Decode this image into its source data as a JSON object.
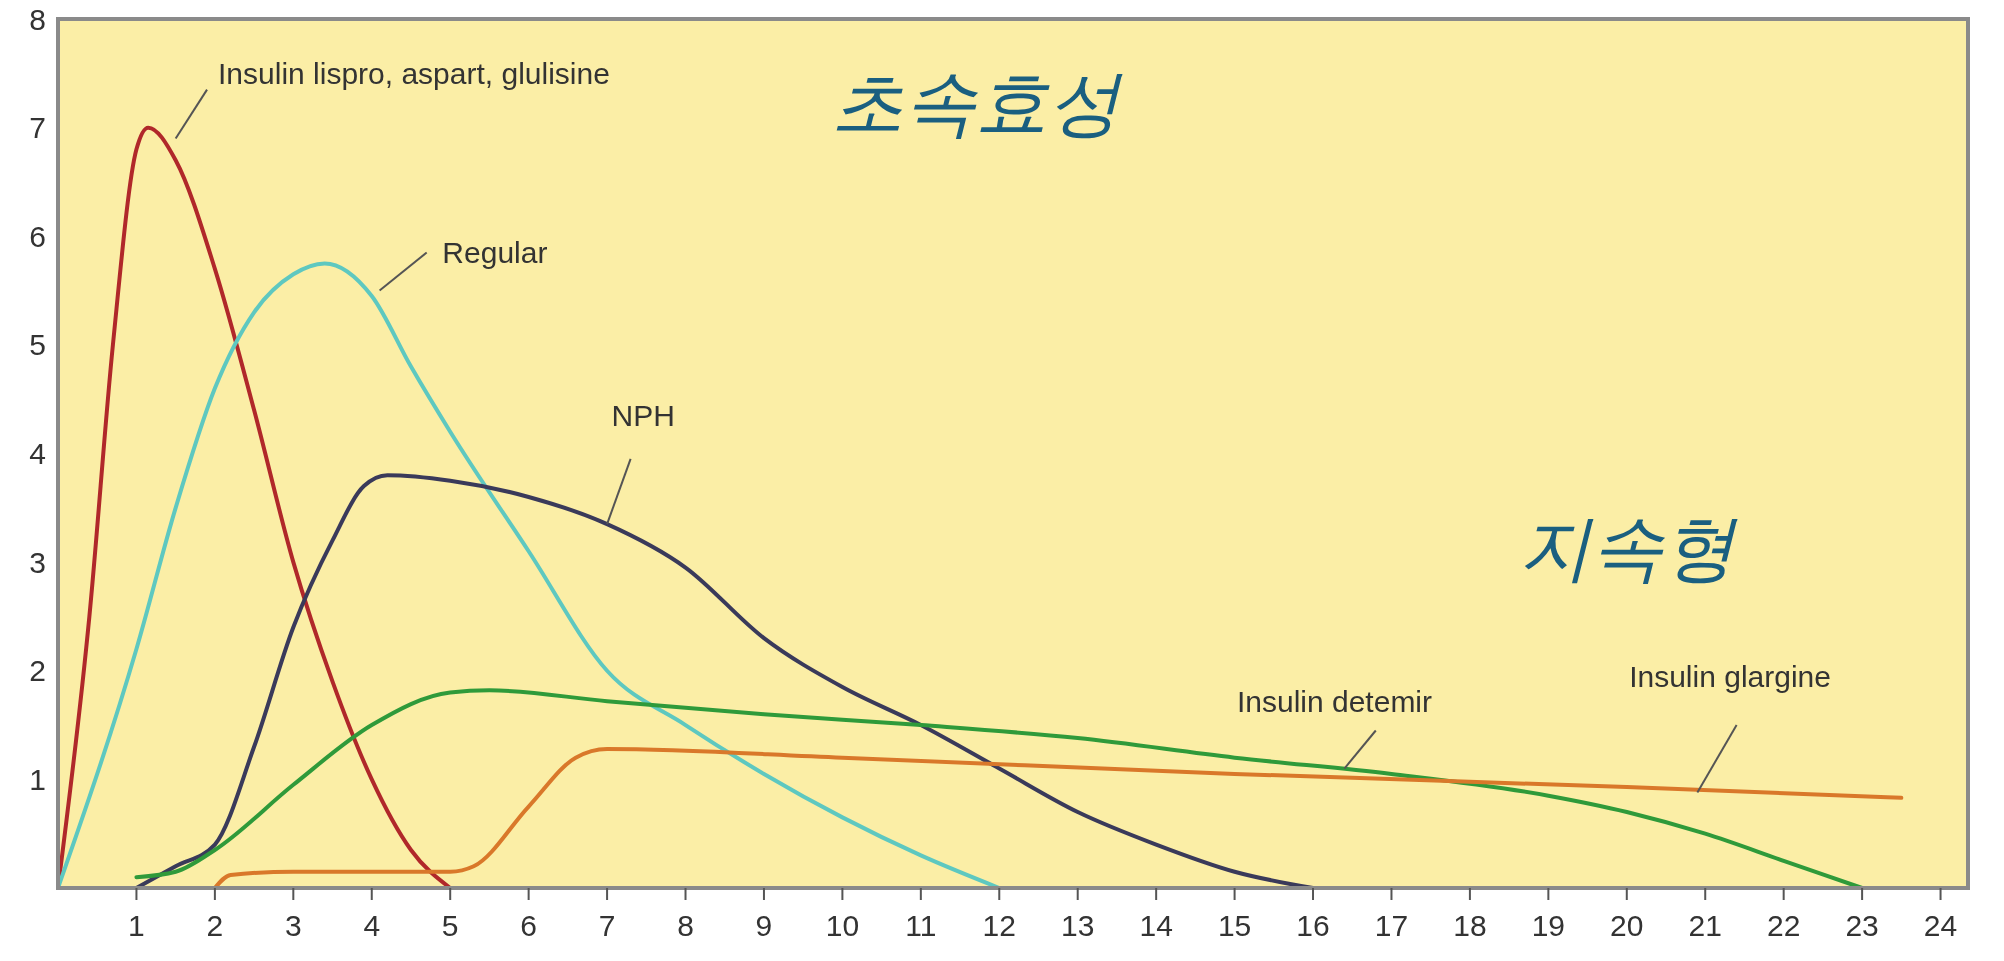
{
  "chart_data": {
    "type": "line",
    "xlim": [
      0,
      24.35
    ],
    "ylim": [
      0,
      8
    ],
    "xticks": [
      1,
      2,
      3,
      4,
      5,
      6,
      7,
      8,
      9,
      10,
      11,
      12,
      13,
      14,
      15,
      16,
      17,
      18,
      19,
      20,
      21,
      22,
      23,
      24
    ],
    "yticks": [
      1,
      2,
      3,
      4,
      5,
      6,
      7,
      8
    ],
    "grid": false,
    "marker": "none",
    "line_style": "solid",
    "annotations": [
      "초속효성",
      "지속형"
    ],
    "series": [
      {
        "name": "Insulin lispro, aspart, glulisine",
        "color": "#b0282a",
        "x": [
          0,
          0.4,
          0.7,
          1.0,
          1.15,
          1.5,
          2,
          2.5,
          3,
          3.5,
          4,
          4.5,
          5
        ],
        "values": [
          0,
          2.5,
          5,
          6.8,
          7.0,
          6.7,
          5.7,
          4.4,
          3.0,
          1.9,
          1.0,
          0.35,
          0
        ]
      },
      {
        "name": "Regular",
        "color": "#5ec8c0",
        "x": [
          0,
          1,
          1.5,
          2,
          2.5,
          3,
          3.4,
          4,
          4.5,
          5,
          6,
          7,
          8,
          9,
          10,
          11,
          12
        ],
        "values": [
          0,
          2.2,
          3.5,
          4.6,
          5.3,
          5.65,
          5.75,
          5.45,
          4.8,
          4.2,
          3.1,
          2.0,
          1.5,
          1.05,
          0.65,
          0.3,
          0
        ]
      },
      {
        "name": "NPH",
        "color": "#3a3a5a",
        "x": [
          1,
          1.5,
          2,
          2.5,
          3,
          3.5,
          3.9,
          4.2,
          5,
          6,
          7,
          8,
          9,
          10,
          11,
          12,
          13,
          14,
          15,
          16
        ],
        "values": [
          0,
          0.2,
          0.4,
          1.3,
          2.4,
          3.2,
          3.7,
          3.8,
          3.75,
          3.6,
          3.35,
          2.95,
          2.3,
          1.85,
          1.5,
          1.1,
          0.7,
          0.4,
          0.15,
          0
        ]
      },
      {
        "name": "Insulin detemir",
        "color": "#2f9a3a",
        "x": [
          1,
          1.5,
          2,
          3,
          4,
          5,
          5.5,
          7,
          9,
          11,
          13,
          15,
          17,
          19,
          20,
          21,
          22,
          23
        ],
        "values": [
          0.1,
          0.15,
          0.35,
          0.95,
          1.5,
          1.8,
          1.82,
          1.72,
          1.6,
          1.5,
          1.38,
          1.2,
          1.05,
          0.85,
          0.7,
          0.5,
          0.25,
          0
        ]
      },
      {
        "name": "Insulin glargine",
        "color": "#d9782a",
        "x": [
          2,
          2.2,
          3,
          5,
          5.3,
          6,
          6.6,
          7,
          10,
          15,
          20,
          23.5
        ],
        "values": [
          0,
          0.12,
          0.15,
          0.15,
          0.2,
          0.75,
          1.2,
          1.28,
          1.2,
          1.05,
          0.93,
          0.83
        ]
      }
    ]
  }
}
